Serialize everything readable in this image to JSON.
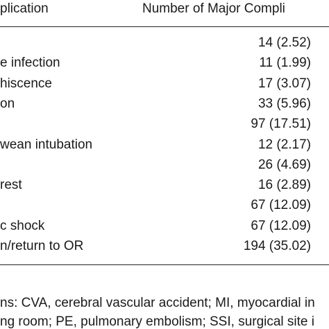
{
  "header": {
    "columns": [
      "plication",
      "Number of Major Compli"
    ]
  },
  "table": {
    "rows": [
      {
        "value": "14 (2.52)"
      },
      {
        "label": "e infection",
        "value": "11 (1.99)"
      },
      {
        "label": "hiscence",
        "value": "17 (3.07)"
      },
      {
        "label": "on",
        "value": "33 (5.96)"
      },
      {
        "value": "97 (17.51)"
      },
      {
        "label": "wean intubation",
        "value": "12 (2.17)"
      },
      {
        "value": "26 (4.69)"
      },
      {
        "label": "rest",
        "value": "16 (2.89)"
      },
      {
        "value": "67 (12.09)"
      },
      {
        "label": "c shock",
        "value": "67 (12.09)"
      },
      {
        "label": "n/return to OR",
        "value": "194 (35.02)"
      }
    ]
  },
  "footnote": {
    "lines": [
      "ns: CVA, cerebral vascular accident; MI, myocardial in",
      "ng room; PE, pulmonary embolism; SSI, surgical site i"
    ]
  }
}
